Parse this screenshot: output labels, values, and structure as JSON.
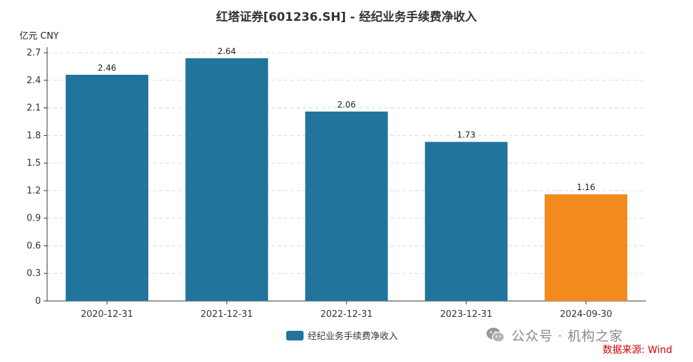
{
  "header": {
    "title": "红塔证券[601236.SH] - 经纪业务手续费净收入",
    "unit": "亿元  CNY"
  },
  "legend": {
    "label": "经纪业务手续费净收入"
  },
  "watermark": {
    "text": "公众号 · 机构之家"
  },
  "source": {
    "text": "数据来源: Wind"
  },
  "colors": {
    "bar": "#21759d",
    "highlight": "#f28a1e",
    "grid": "#d9d9d9",
    "axis": "#333333"
  },
  "chart_data": {
    "type": "bar",
    "title": "红塔证券[601236.SH] - 经纪业务手续费净收入",
    "ylabel": "亿元  CNY",
    "categories": [
      "2020-12-31",
      "2021-12-31",
      "2022-12-31",
      "2023-12-31",
      "2024-09-30"
    ],
    "values": [
      2.46,
      2.64,
      2.06,
      1.73,
      1.16
    ],
    "value_labels": [
      "2.46",
      "2.64",
      "2.06",
      "1.73",
      "1.16"
    ],
    "highlight_index": 4,
    "ylim": [
      0,
      2.7
    ],
    "yticks": [
      "0",
      "0.3",
      "0.6",
      "0.9",
      "1.2",
      "1.5",
      "1.8",
      "2.1",
      "2.4",
      "2.7"
    ],
    "grid": true,
    "legend_position": "bottom-center",
    "series": [
      {
        "name": "经纪业务手续费净收入",
        "values": [
          2.46,
          2.64,
          2.06,
          1.73,
          1.16
        ]
      }
    ]
  }
}
